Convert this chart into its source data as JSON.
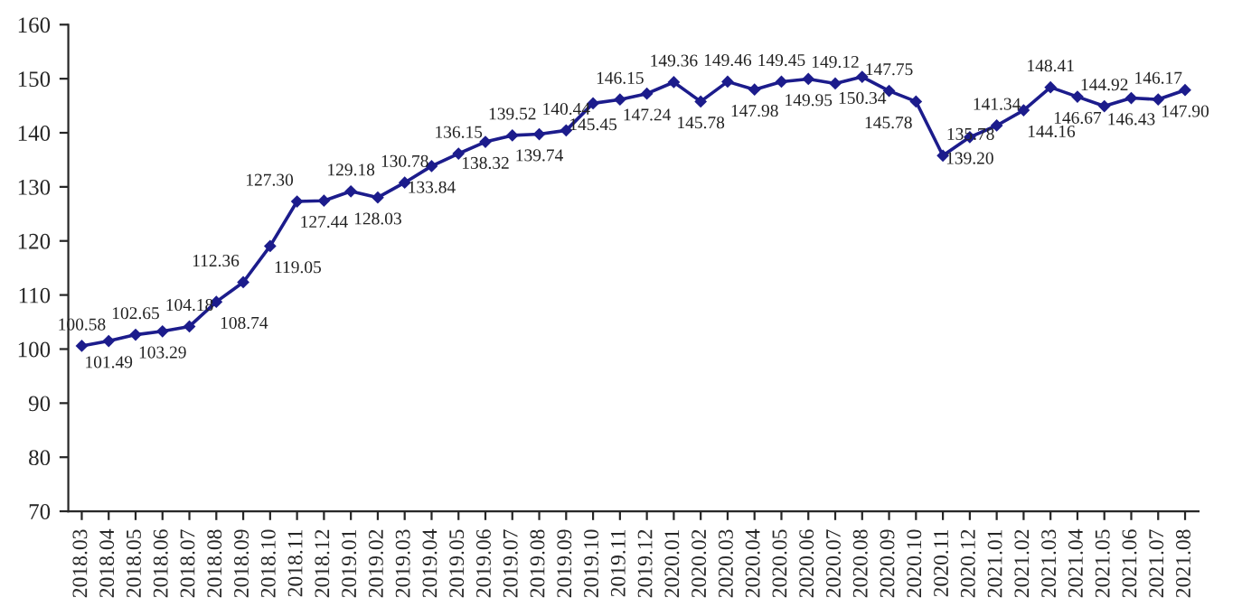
{
  "chart_data": {
    "type": "line",
    "categories": [
      "2018.03",
      "2018.04",
      "2018.05",
      "2018.06",
      "2018.07",
      "2018.08",
      "2018.09",
      "2018.10",
      "2018.11",
      "2018.12",
      "2019.01",
      "2019.02",
      "2019.03",
      "2019.04",
      "2019.05",
      "2019.06",
      "2019.07",
      "2019.08",
      "2019.09",
      "2019.10",
      "2019.11",
      "2019.12",
      "2020.01",
      "2020.02",
      "2020.03",
      "2020.04",
      "2020.05",
      "2020.06",
      "2020.07",
      "2020.08",
      "2020.09",
      "2020.10",
      "2020.11",
      "2020.12",
      "2021.01",
      "2021.02",
      "2021.03",
      "2021.04",
      "2021.05",
      "2021.06",
      "2021.07",
      "2021.08"
    ],
    "series": [
      {
        "color": "#1c1c8c",
        "values": [
          100.58,
          101.49,
          102.65,
          103.29,
          104.18,
          108.74,
          112.36,
          119.05,
          127.3,
          127.44,
          129.18,
          128.03,
          130.78,
          133.84,
          136.15,
          138.32,
          139.52,
          139.74,
          140.44,
          145.45,
          146.15,
          147.24,
          149.36,
          145.78,
          149.46,
          147.98,
          149.45,
          149.95,
          149.12,
          150.34,
          147.75,
          145.78,
          135.78,
          139.2,
          141.34,
          144.16,
          148.41,
          146.67,
          144.92,
          146.43,
          146.17,
          147.9
        ],
        "value_labels": [
          "100.58",
          "101.49",
          "102.65",
          "103.29",
          "104.18",
          "108.74",
          "112.36",
          "119.05",
          "127.30",
          "127.44",
          "129.18",
          "128.03",
          "130.78",
          "133.84",
          "136.15",
          "138.32",
          "139.52",
          "139.74",
          "140.44",
          "145.45",
          "146.15",
          "147.24",
          "149.36",
          "145.78",
          "149.46",
          "147.98",
          "149.45",
          "149.95",
          "149.12",
          "150.34",
          "147.75",
          "145.78",
          "135.78",
          "139.20",
          "141.34",
          "144.16",
          "148.41",
          "146.67",
          "144.92",
          "146.43",
          "146.17",
          "147.90"
        ]
      }
    ],
    "ylim": [
      70,
      160
    ],
    "yticks": [
      70,
      80,
      90,
      100,
      110,
      120,
      130,
      140,
      150,
      160
    ],
    "grid": false,
    "legend": false,
    "marker": "diamond",
    "line_style": "solid"
  }
}
